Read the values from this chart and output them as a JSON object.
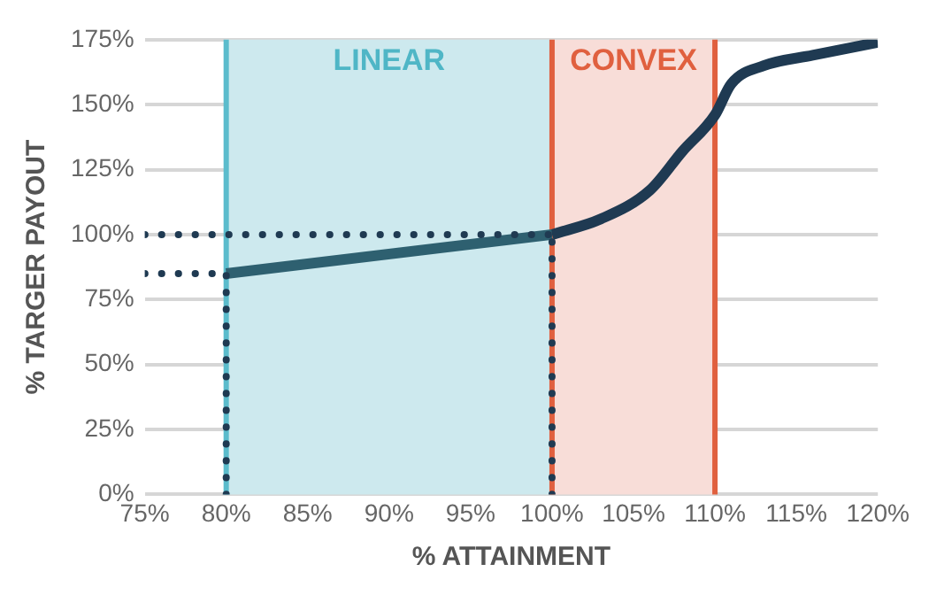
{
  "chart_data": {
    "type": "line",
    "xlabel": "% ATTAINMENT",
    "ylabel": "% TARGER PAYOUT",
    "xlim": [
      75,
      120
    ],
    "xticks": [
      {
        "value": 75,
        "label": "75%"
      },
      {
        "value": 80,
        "label": "80%"
      },
      {
        "value": 85,
        "label": "85%"
      },
      {
        "value": 90,
        "label": "90%"
      },
      {
        "value": 95,
        "label": "95%"
      },
      {
        "value": 100,
        "label": "100%"
      },
      {
        "value": 105,
        "label": "105%"
      },
      {
        "value": 110,
        "label": "110%"
      },
      {
        "value": 115,
        "label": "115%"
      },
      {
        "value": 120,
        "label": "120%"
      }
    ],
    "ylim": [
      0,
      175
    ],
    "yticks": [
      {
        "value": 0,
        "label": "0%"
      },
      {
        "value": 25,
        "label": "25%"
      },
      {
        "value": 50,
        "label": "50%"
      },
      {
        "value": 75,
        "label": "75%"
      },
      {
        "value": 100,
        "label": "100%"
      },
      {
        "value": 125,
        "label": "125%"
      },
      {
        "value": 150,
        "label": "150%"
      },
      {
        "value": 175,
        "label": "175%"
      }
    ],
    "grid": "y",
    "legend": false,
    "marker": "none",
    "series": [
      {
        "color": "#2e6070",
        "x": [
          80,
          100
        ],
        "values": [
          85,
          100
        ],
        "line_style": "solid"
      },
      {
        "color": "#1f3a52",
        "x": [
          100,
          103,
          106,
          108,
          110,
          111,
          113,
          116,
          120
        ],
        "values": [
          100,
          106,
          117,
          132,
          146,
          158,
          165,
          169,
          174
        ],
        "line_style": "solid"
      },
      {
        "color": "#1f3a52",
        "x": [
          75,
          100
        ],
        "values": [
          100,
          100
        ],
        "line_style": "dotted"
      },
      {
        "color": "#1f3a52",
        "x": [
          75,
          80
        ],
        "values": [
          85,
          85
        ],
        "line_style": "dotted"
      },
      {
        "color": "#1f3a52",
        "x": [
          80,
          80
        ],
        "values": [
          0,
          85
        ],
        "line_style": "dotted"
      },
      {
        "color": "#1f3a52",
        "x": [
          100,
          100
        ],
        "values": [
          0,
          100
        ],
        "line_style": "dotted"
      }
    ],
    "bands": [
      {
        "axis": "x",
        "from": 80,
        "to": 100,
        "label": "LINEAR",
        "color": "#cde9ee"
      },
      {
        "axis": "x",
        "from": 100,
        "to": 110,
        "label": "CONVEX",
        "color": "#f8ddd8"
      }
    ],
    "ref_lines": [
      {
        "axis": "x",
        "value": 80,
        "color": "#5bbccc"
      },
      {
        "axis": "x",
        "value": 100,
        "color": "#e0603f"
      },
      {
        "axis": "x",
        "value": 110,
        "color": "#e0603f"
      }
    ]
  }
}
